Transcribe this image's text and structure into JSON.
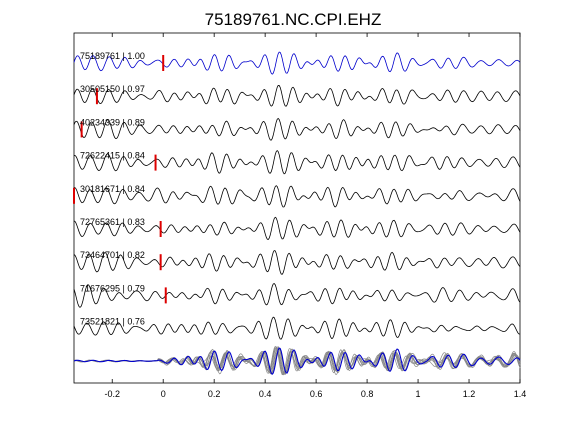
{
  "chart_data": {
    "type": "line",
    "title": "75189761.NC.CPI.EHZ",
    "xlabel": "",
    "ylabel": "",
    "xlim": [
      -0.35,
      1.4
    ],
    "x_ticks": [
      "-0.2",
      "0",
      "0.2",
      "0.4",
      "0.6",
      "0.8",
      "1",
      "1.2",
      "1.4"
    ],
    "x_tick_values": [
      -0.2,
      0,
      0.2,
      0.4,
      0.6,
      0.8,
      1.0,
      1.2,
      1.4
    ],
    "grid": false,
    "colors": {
      "reference": "#0000cc",
      "trace": "#000000",
      "pick": "#dd0000",
      "stack": "#888888"
    },
    "traces": [
      {
        "label": "75189761 | 1.00",
        "event_id": "75189761",
        "cc": 1.0,
        "pick_time": 0.0,
        "reference": true
      },
      {
        "label": "30505150 | 0.97",
        "event_id": "30505150",
        "cc": 0.97,
        "pick_time": -0.26
      },
      {
        "label": "40234339 | 0.89",
        "event_id": "40234339",
        "cc": 0.89,
        "pick_time": -0.32
      },
      {
        "label": "72622415 | 0.84",
        "event_id": "72622415",
        "cc": 0.84,
        "pick_time": -0.03
      },
      {
        "label": "30181671 | 0.84",
        "event_id": "30181671",
        "cc": 0.84,
        "pick_time": -0.35
      },
      {
        "label": "72765361 | 0.83",
        "event_id": "72765361",
        "cc": 0.83,
        "pick_time": -0.01
      },
      {
        "label": "73464701 | 0.82",
        "event_id": "73464701",
        "cc": 0.82,
        "pick_time": -0.01
      },
      {
        "label": "71676295 | 0.79",
        "event_id": "71676295",
        "cc": 0.79,
        "pick_time": 0.01
      },
      {
        "label": "73521821 | 0.76",
        "event_id": "73521821",
        "cc": 0.76,
        "pick_time": null
      }
    ],
    "overlay": {
      "description_visible": false
    }
  }
}
